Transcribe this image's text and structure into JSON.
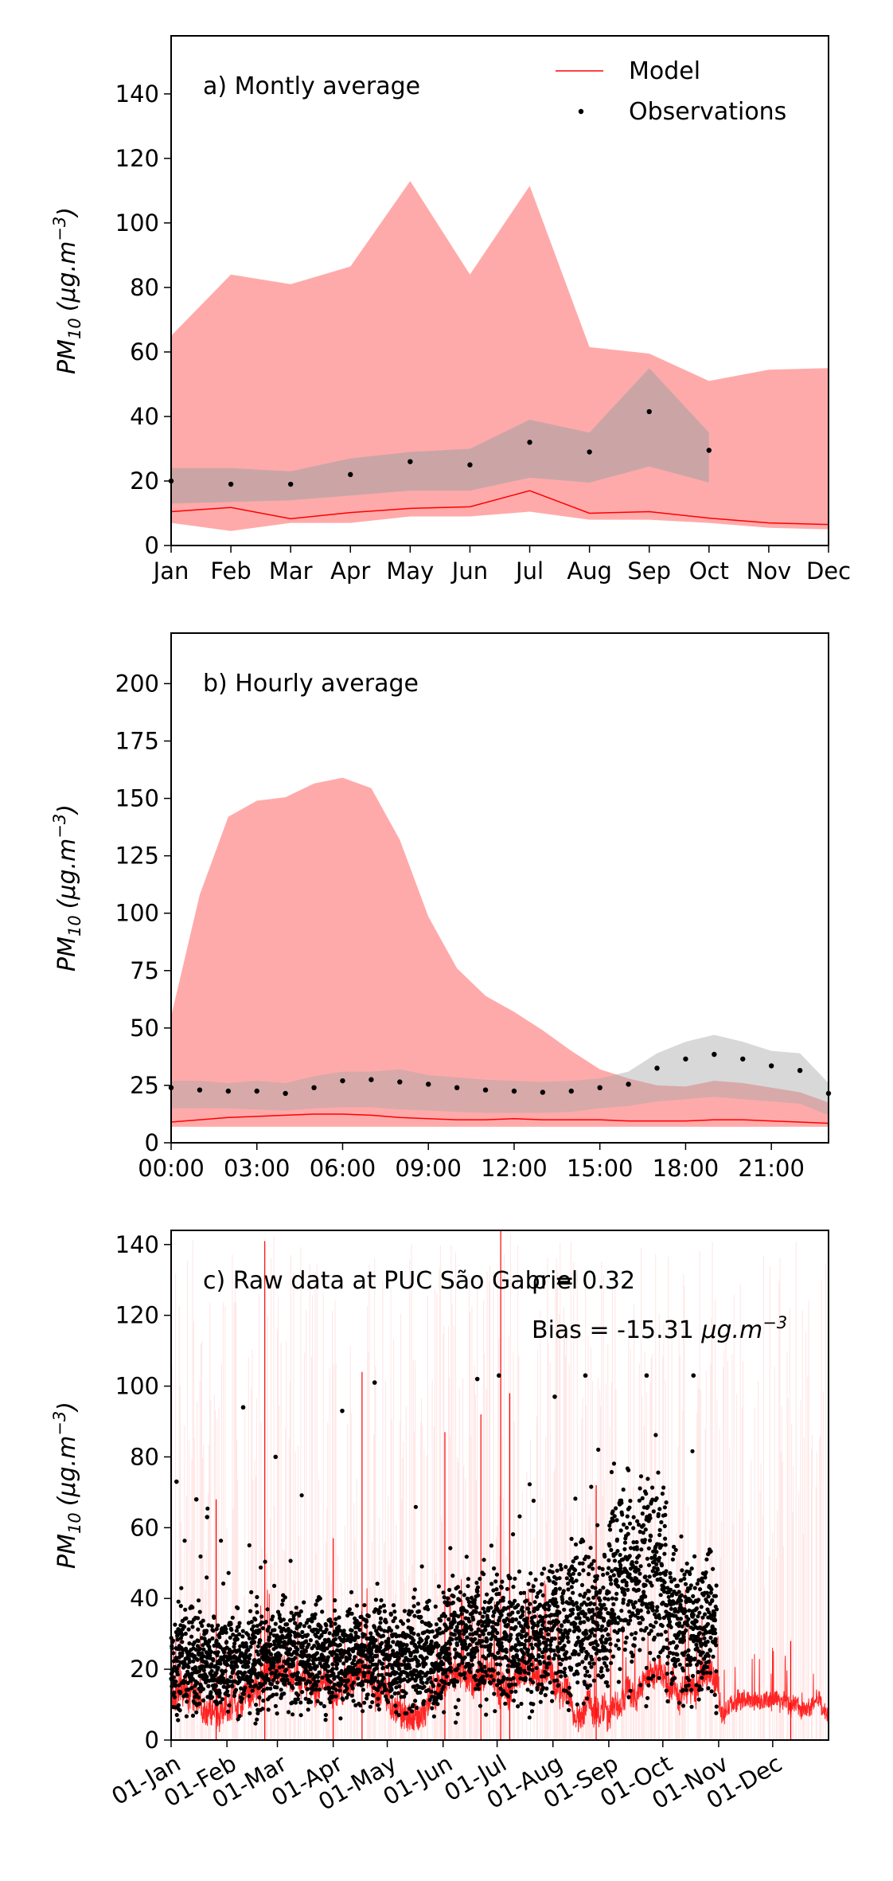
{
  "chart_data": [
    {
      "type": "line",
      "annotation": "a) Montly average",
      "ylabel": "PM10 (μg.m−3)",
      "ylabel_parts": {
        "base": "PM",
        "sub": "10",
        "unit": "(μg.m",
        "sup": "−3",
        "close": ")"
      },
      "ylim": [
        0,
        158
      ],
      "yticks": [
        0,
        20,
        40,
        60,
        80,
        100,
        120,
        140
      ],
      "categories": [
        "Jan",
        "Feb",
        "Mar",
        "Apr",
        "May",
        "Jun",
        "Jul",
        "Aug",
        "Sep",
        "Oct",
        "Nov",
        "Dec"
      ],
      "legend": {
        "placement": "top-right",
        "model": "Model",
        "observations": "Observations"
      },
      "colors": {
        "model": "#ff0000",
        "model_band": "#ffaaaa",
        "obs_band": "#a0a0a0",
        "obs": "#000000"
      },
      "series": [
        {
          "name": "Model",
          "values": [
            10.5,
            11.8,
            8.3,
            10.2,
            11.5,
            12,
            17,
            10,
            10.5,
            8.5,
            7,
            6.5
          ]
        },
        {
          "name": "Observations",
          "values": [
            20,
            19,
            19,
            22,
            26,
            25,
            32,
            29,
            41.5,
            29.5,
            null,
            null
          ]
        }
      ],
      "model_band": {
        "low": [
          7,
          4.5,
          7,
          7,
          9,
          9,
          10.5,
          8,
          8,
          7,
          5.5,
          5
        ],
        "high": [
          65,
          84,
          81,
          86.5,
          113,
          84,
          111.5,
          61.5,
          59.5,
          51,
          54.5,
          55
        ]
      },
      "obs_band": {
        "low": [
          13,
          13.5,
          14,
          15.5,
          17,
          17,
          21,
          19.5,
          24.5,
          19.5,
          null,
          null
        ],
        "high": [
          24,
          24,
          23,
          27,
          29,
          30,
          39,
          35,
          55,
          35,
          null,
          null
        ]
      }
    },
    {
      "type": "line",
      "annotation": "b) Hourly average",
      "ylabel": "PM10 (μg.m−3)",
      "ylabel_parts": {
        "base": "PM",
        "sub": "10",
        "unit": "(μg.m",
        "sup": "−3",
        "close": ")"
      },
      "ylim": [
        0,
        222
      ],
      "yticks": [
        0,
        25,
        50,
        75,
        100,
        125,
        150,
        175,
        200
      ],
      "xtick_labels": [
        "00:00",
        "03:00",
        "06:00",
        "09:00",
        "12:00",
        "15:00",
        "18:00",
        "21:00"
      ],
      "xtick_hours": [
        0,
        3,
        6,
        9,
        12,
        15,
        18,
        21
      ],
      "xlim": [
        0,
        23
      ],
      "colors": {
        "model": "#ff0000",
        "model_band": "#ffaaaa",
        "obs_band": "#a8a8a8",
        "obs": "#000000"
      },
      "series": [
        {
          "name": "Model",
          "x": [
            0,
            1,
            2,
            3,
            4,
            5,
            6,
            7,
            8,
            9,
            10,
            11,
            12,
            13,
            14,
            15,
            16,
            17,
            18,
            19,
            20,
            21,
            22,
            23
          ],
          "values": [
            9,
            10,
            11,
            11.5,
            12,
            12.5,
            12.5,
            12,
            11,
            10.5,
            10,
            10,
            10.5,
            10,
            10,
            10,
            9.5,
            9.5,
            9.5,
            10,
            10,
            9.5,
            9,
            8.5
          ]
        },
        {
          "name": "Observations",
          "x": [
            0,
            1,
            2,
            3,
            4,
            5,
            6,
            7,
            8,
            9,
            10,
            11,
            12,
            13,
            14,
            15,
            16,
            17,
            18,
            19,
            20,
            21,
            22,
            23
          ],
          "values": [
            24,
            23,
            22.5,
            22.5,
            21.5,
            24,
            27,
            27.5,
            26.5,
            25.5,
            24,
            23,
            22.5,
            22,
            22.5,
            24,
            25.5,
            32.5,
            36.5,
            38.5,
            36.5,
            33.5,
            31.5,
            21.5
          ]
        }
      ],
      "model_band": {
        "low": [
          7,
          7,
          7,
          7,
          7,
          7,
          7,
          7,
          7,
          7,
          7,
          7,
          7,
          7,
          7,
          7,
          7,
          7,
          7,
          7,
          7,
          7,
          7,
          7
        ],
        "high": [
          55,
          108,
          142,
          149,
          150.5,
          156.5,
          159,
          154.5,
          132,
          98.5,
          76,
          64,
          57,
          49,
          40,
          32,
          28,
          25,
          24.5,
          27,
          26,
          24,
          22,
          17.5
        ]
      },
      "obs_band": {
        "low": [
          15,
          15,
          15,
          14.5,
          14,
          15,
          15.5,
          15.5,
          14.5,
          14,
          13.5,
          13,
          13,
          13,
          13.5,
          15,
          16,
          18,
          19,
          20,
          19,
          18,
          17,
          12
        ]
      },
      "obs_band_high": [
        27,
        27,
        26,
        27,
        26,
        29,
        31,
        31,
        32,
        29.5,
        28.5,
        27.5,
        27,
        26.5,
        27,
        28,
        31,
        39,
        44,
        47,
        44,
        40,
        39,
        26
      ]
    },
    {
      "type": "line",
      "annotation": "c) Raw data at PUC São Gabriel",
      "r_text": "ρ = 0.32",
      "bias_prefix": "Bias = -15.31 ",
      "bias_unit": "μg.m",
      "bias_sup": "−3",
      "ylabel": "PM10 (μg.m−3)",
      "ylabel_parts": {
        "base": "PM",
        "sub": "10",
        "unit": "(μg.m",
        "sup": "−3",
        "close": ")"
      },
      "ylim": [
        0,
        144
      ],
      "yticks": [
        0,
        20,
        40,
        60,
        80,
        100,
        120,
        140
      ],
      "xtick_labels": [
        "01-Jan",
        "01-Feb",
        "01-Mar",
        "01-Apr",
        "01-May",
        "01-Jun",
        "01-Jul",
        "01-Aug",
        "01-Sep",
        "01-Oct",
        "01-Nov",
        "01-Dec"
      ],
      "xtick_days": [
        0,
        31,
        59,
        90,
        120,
        151,
        181,
        212,
        243,
        273,
        304,
        334
      ],
      "xlim": [
        0,
        365
      ],
      "obs_end_day": 303,
      "colors": {
        "model": "#ff0000",
        "model_spread": "#ffd0d0",
        "obs": "#000000"
      },
      "model_spikes": [
        {
          "day": 25,
          "value": 68
        },
        {
          "day": 52,
          "value": 141
        },
        {
          "day": 90,
          "value": 57
        },
        {
          "day": 106,
          "value": 104
        },
        {
          "day": 152,
          "value": 87
        },
        {
          "day": 172,
          "value": 92
        },
        {
          "day": 183,
          "value": 144
        },
        {
          "day": 188,
          "value": 98
        },
        {
          "day": 236,
          "value": 72
        },
        {
          "day": 344,
          "value": 28
        }
      ],
      "obs_outliers": [
        {
          "day": 40,
          "value": 94
        },
        {
          "day": 58,
          "value": 80
        },
        {
          "day": 95,
          "value": 93
        },
        {
          "day": 113,
          "value": 101
        },
        {
          "day": 170,
          "value": 102
        },
        {
          "day": 182,
          "value": 103
        },
        {
          "day": 213,
          "value": 97
        },
        {
          "day": 230,
          "value": 103
        },
        {
          "day": 264,
          "value": 103
        },
        {
          "day": 290,
          "value": 103
        },
        {
          "day": 14,
          "value": 68
        },
        {
          "day": 20,
          "value": 63
        },
        {
          "day": 3,
          "value": 73
        }
      ]
    }
  ]
}
